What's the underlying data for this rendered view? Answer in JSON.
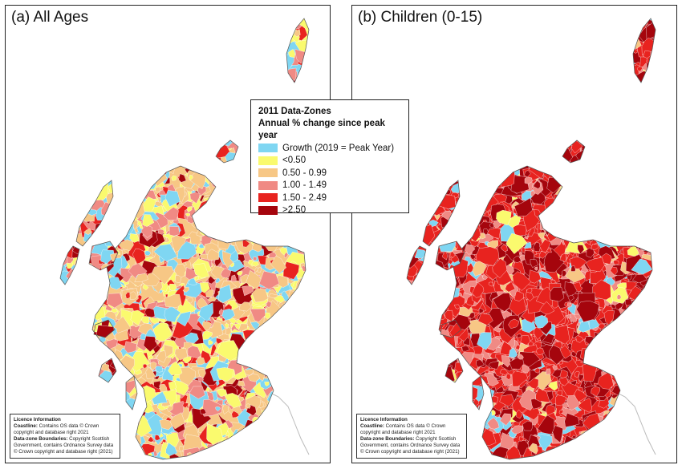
{
  "panels": [
    {
      "title": "(a) All Ages",
      "palette": [
        "#7fd6f2",
        "#fafa6e",
        "#f7c785",
        "#f08a84",
        "#e8231f",
        "#a5050d"
      ],
      "weights": [
        0.16,
        0.22,
        0.27,
        0.16,
        0.09,
        0.1
      ]
    },
    {
      "title": "(b) Children (0-15)",
      "palette": [
        "#7fd6f2",
        "#fafa6e",
        "#f7c785",
        "#f08a84",
        "#e8231f",
        "#a5050d"
      ],
      "weights": [
        0.06,
        0.03,
        0.05,
        0.12,
        0.46,
        0.28
      ]
    }
  ],
  "legend": {
    "title_line1": "2011 Data-Zones",
    "title_line2": "Annual % change since peak year",
    "items": [
      {
        "label": "Growth (2019 = Peak Year)",
        "color": "#7fd6f2"
      },
      {
        "label": "<0.50",
        "color": "#fafa6e"
      },
      {
        "label": "0.50 - 0.99",
        "color": "#f7c785"
      },
      {
        "label": "1.00 - 1.49",
        "color": "#f08a84"
      },
      {
        "label": "1.50 - 2.49",
        "color": "#e8231f"
      },
      {
        "label": ">2.50",
        "color": "#a5050d"
      }
    ]
  },
  "licence": {
    "heading": "Licence Information",
    "coastline_label": "Coastline:",
    "coastline_text": "Contains OS data © Crown copyright and database right 2021",
    "boundaries_label": "Data-zone Boundaries:",
    "boundaries_text": "Copyright Scottish Government, contains Ordnance Survey data © Crown copyright and database right (2021)"
  }
}
